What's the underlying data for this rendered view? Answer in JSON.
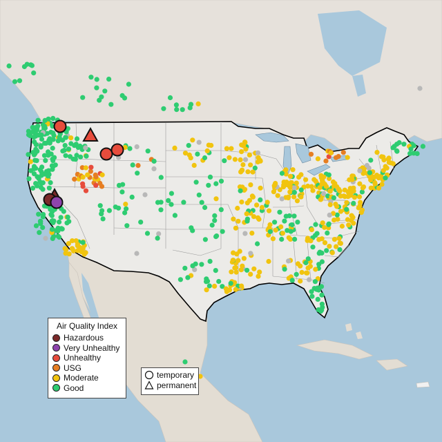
{
  "colors": {
    "water": "#a9c8dc",
    "land_us": "#ece9e6",
    "land_other": "#e3ddd3",
    "hazardous": "#7b2a2a",
    "very_unhealthy": "#8e44ad",
    "unhealthy": "#e74c3c",
    "usg": "#e67e22",
    "moderate": "#f1c40f",
    "good": "#2ecc71",
    "na": "#b8b8b8"
  },
  "legend": {
    "title": "Air Quality Index",
    "items": [
      {
        "label": "Hazardous",
        "color": "#7b2a2a"
      },
      {
        "label": "Very Unhealthy",
        "color": "#8e44ad"
      },
      {
        "label": "Unhealthy",
        "color": "#e74c3c"
      },
      {
        "label": "USG",
        "color": "#e67e22"
      },
      {
        "label": "Moderate",
        "color": "#f1c40f"
      },
      {
        "label": "Good",
        "color": "#2ecc71"
      }
    ]
  },
  "shape_legend": {
    "temporary": "temporary",
    "permanent": "permanent"
  },
  "large_markers": [
    {
      "type": "circle",
      "level": "unhealthy",
      "region": "northern-idaho"
    },
    {
      "type": "triangle",
      "level": "unhealthy",
      "region": "western-montana"
    },
    {
      "type": "circle",
      "level": "unhealthy",
      "region": "southwest-montana-1"
    },
    {
      "type": "circle",
      "level": "unhealthy",
      "region": "southwest-montana-2"
    },
    {
      "type": "triangle",
      "level": "hazardous",
      "region": "northern-california"
    },
    {
      "type": "circle",
      "level": "hazardous",
      "region": "northern-california"
    },
    {
      "type": "circle",
      "level": "very_unhealthy",
      "region": "northern-california"
    }
  ]
}
